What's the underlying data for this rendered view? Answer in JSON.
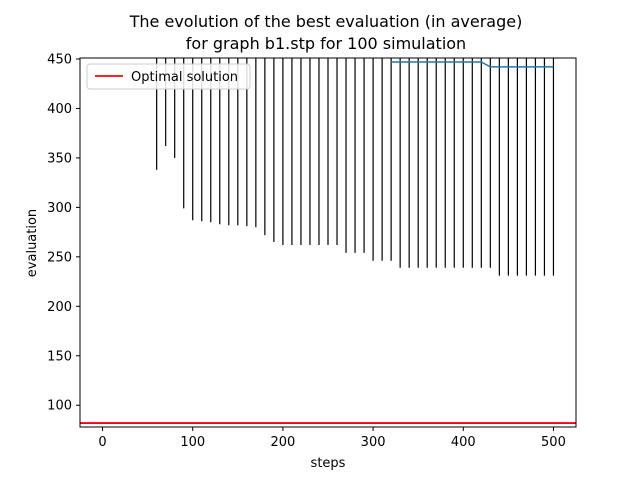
{
  "chart_data": {
    "type": "line",
    "title_line1": "The evolution of the best evaluation (in average)",
    "title_line2": "for graph b1.stp for 100 simulation",
    "xlabel": "steps",
    "ylabel": "evaluation",
    "xlim": [
      -25,
      525
    ],
    "ylim": [
      78,
      451
    ],
    "xticks": [
      0,
      100,
      200,
      300,
      400,
      500
    ],
    "yticks": [
      100,
      150,
      200,
      250,
      300,
      350,
      400,
      450
    ],
    "grid": false,
    "legend": {
      "placement": "upper left",
      "label": "Optimal solution"
    },
    "optimal_solution": {
      "value": 82,
      "color": "#ff0000"
    },
    "mean_series": {
      "color": "#1f77b4",
      "x": [
        320,
        330,
        340,
        350,
        360,
        370,
        380,
        390,
        400,
        410,
        420,
        430,
        440,
        450,
        460,
        470,
        480,
        490,
        500
      ],
      "y": [
        447,
        447,
        447,
        447,
        447,
        447,
        447,
        447,
        447,
        447,
        447,
        442,
        442,
        442,
        442,
        442,
        442,
        442,
        442
      ]
    },
    "error_bars": {
      "color": "#000000",
      "x": [
        50,
        60,
        70,
        80,
        90,
        100,
        110,
        120,
        130,
        140,
        150,
        160,
        170,
        180,
        190,
        200,
        210,
        220,
        230,
        240,
        250,
        260,
        270,
        280,
        290,
        300,
        310,
        320,
        330,
        340,
        350,
        360,
        370,
        380,
        390,
        400,
        410,
        420,
        430,
        440,
        450,
        460,
        470,
        480,
        490,
        500
      ],
      "lower": [
        451,
        338,
        362,
        350,
        299,
        287,
        286,
        285,
        283,
        282,
        282,
        281,
        280,
        272,
        265,
        262,
        262,
        262,
        262,
        262,
        262,
        262,
        254,
        254,
        254,
        246,
        246,
        246,
        239,
        239,
        239,
        239,
        239,
        239,
        239,
        239,
        239,
        239,
        239,
        231,
        231,
        231,
        231,
        231,
        231,
        231
      ]
    }
  }
}
